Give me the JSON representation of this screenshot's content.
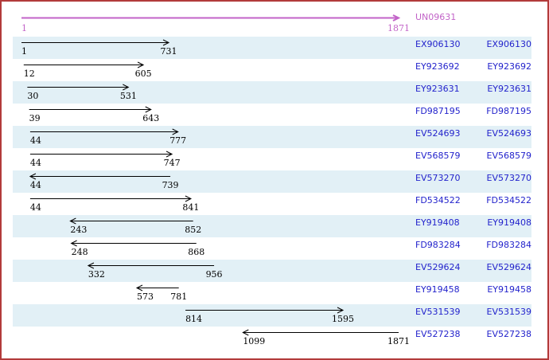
{
  "header": {
    "label": "UN09631",
    "start": 1,
    "end": 1871,
    "start_label": "1",
    "end_label": "1871",
    "direction": "right"
  },
  "rows": [
    {
      "accession": "EX906130",
      "start": 1,
      "end": 731,
      "start_label": "1",
      "end_label": "731",
      "direction": "right"
    },
    {
      "accession": "EY923692",
      "start": 12,
      "end": 605,
      "start_label": "12",
      "end_label": "605",
      "direction": "right"
    },
    {
      "accession": "EY923631",
      "start": 30,
      "end": 531,
      "start_label": "30",
      "end_label": "531",
      "direction": "right"
    },
    {
      "accession": "FD987195",
      "start": 39,
      "end": 643,
      "start_label": "39",
      "end_label": "643",
      "direction": "right"
    },
    {
      "accession": "EV524693",
      "start": 44,
      "end": 777,
      "start_label": "44",
      "end_label": "777",
      "direction": "right"
    },
    {
      "accession": "EV568579",
      "start": 44,
      "end": 747,
      "start_label": "44",
      "end_label": "747",
      "direction": "right"
    },
    {
      "accession": "EV573270",
      "start": 44,
      "end": 739,
      "start_label": "44",
      "end_label": "739",
      "direction": "left"
    },
    {
      "accession": "FD534522",
      "start": 44,
      "end": 841,
      "start_label": "44",
      "end_label": "841",
      "direction": "right"
    },
    {
      "accession": "EY919408",
      "start": 243,
      "end": 852,
      "start_label": "243",
      "end_label": "852",
      "direction": "left"
    },
    {
      "accession": "FD983284",
      "start": 248,
      "end": 868,
      "start_label": "248",
      "end_label": "868",
      "direction": "left"
    },
    {
      "accession": "EV529624",
      "start": 332,
      "end": 956,
      "start_label": "332",
      "end_label": "956",
      "direction": "left"
    },
    {
      "accession": "EY919458",
      "start": 573,
      "end": 781,
      "start_label": "573",
      "end_label": "781",
      "direction": "left"
    },
    {
      "accession": "EV531539",
      "start": 814,
      "end": 1595,
      "start_label": "814",
      "end_label": "1595",
      "direction": "right"
    },
    {
      "accession": "EV527238",
      "start": 1099,
      "end": 1871,
      "start_label": "1099",
      "end_label": "1871",
      "direction": "left"
    }
  ],
  "colors": {
    "border": "#b23a3a",
    "stripe": "#e2f0f6",
    "link": "#2323cc",
    "header_accent": "#c263c8",
    "arrow": "#000000",
    "background": "#ffffff"
  }
}
